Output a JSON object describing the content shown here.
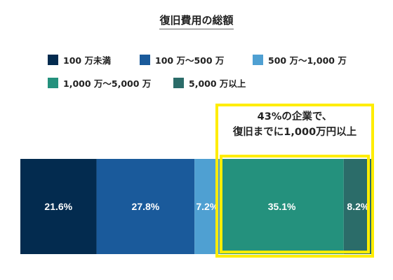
{
  "chart_data": {
    "type": "bar",
    "orientation": "horizontal-stacked-100",
    "title": "復旧費用の総額",
    "xlabel": "",
    "ylabel": "",
    "series": [
      {
        "name": "100 万未満",
        "value": 21.6,
        "label": "21.6%",
        "color": "#032b4f"
      },
      {
        "name": "100 万～500 万",
        "value": 27.8,
        "label": "27.8%",
        "color": "#1a5a9b"
      },
      {
        "name": "500 万～1,000 万",
        "value": 7.2,
        "label": "7.2%",
        "color": "#4fa0d2"
      },
      {
        "name": "1,000 万～5,000 万",
        "value": 35.1,
        "label": "35.1%",
        "color": "#24917d"
      },
      {
        "name": "5,000 万以上",
        "value": 8.2,
        "label": "8.2%",
        "color": "#2b6c69"
      }
    ],
    "legend_position": "top",
    "grid": false,
    "annotation": {
      "lines": [
        "43%の企業で、",
        "復旧までに1,000万円以上"
      ],
      "highlight_color": "#ffed00"
    }
  }
}
